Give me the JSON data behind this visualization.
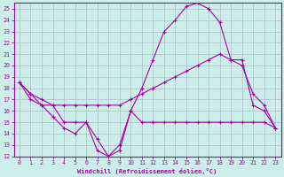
{
  "bg_color": "#cceee8",
  "line_color": "#aa00aa",
  "grid_color": "#aabbcc",
  "xlim": [
    -0.5,
    23.5
  ],
  "ylim": [
    12,
    25.5
  ],
  "xlabel": "Windchill (Refroidissement éolien,°C)",
  "xticks": [
    0,
    1,
    2,
    3,
    4,
    5,
    6,
    7,
    8,
    9,
    10,
    11,
    12,
    13,
    14,
    15,
    16,
    17,
    18,
    19,
    20,
    21,
    22,
    23
  ],
  "yticks": [
    12,
    13,
    14,
    15,
    16,
    17,
    18,
    19,
    20,
    21,
    22,
    23,
    24,
    25
  ],
  "curve1_x": [
    0,
    1,
    2,
    3,
    4,
    5,
    6,
    7,
    8,
    9,
    10,
    11,
    12,
    13,
    14,
    15,
    16,
    17,
    18,
    19,
    20,
    21,
    22,
    23
  ],
  "curve1_y": [
    18.5,
    17.5,
    16.5,
    16.5,
    15.0,
    15.0,
    15.0,
    12.5,
    12.0,
    12.5,
    16.0,
    15.0,
    15.0,
    15.0,
    15.0,
    15.0,
    15.0,
    15.0,
    15.0,
    15.0,
    15.0,
    15.0,
    15.0,
    14.5
  ],
  "curve2_x": [
    0,
    1,
    2,
    3,
    4,
    5,
    6,
    7,
    8,
    9,
    10,
    11,
    12,
    13,
    14,
    15,
    16,
    17,
    18,
    19,
    20,
    21,
    22,
    23
  ],
  "curve2_y": [
    18.5,
    17.0,
    16.5,
    15.5,
    14.5,
    14.0,
    15.0,
    13.5,
    12.0,
    13.0,
    16.0,
    18.0,
    20.5,
    23.0,
    24.0,
    25.2,
    25.5,
    25.0,
    23.8,
    20.5,
    20.5,
    16.5,
    16.0,
    14.5
  ],
  "curve3_x": [
    0,
    1,
    2,
    3,
    4,
    5,
    6,
    7,
    8,
    9,
    10,
    11,
    12,
    13,
    14,
    15,
    16,
    17,
    18,
    19,
    20,
    21,
    22,
    23
  ],
  "curve3_y": [
    18.5,
    17.5,
    17.0,
    16.5,
    16.5,
    16.5,
    16.5,
    16.5,
    16.5,
    16.5,
    17.0,
    17.5,
    18.0,
    18.5,
    19.0,
    19.5,
    20.0,
    20.5,
    21.0,
    20.5,
    20.0,
    17.5,
    16.5,
    14.5
  ]
}
